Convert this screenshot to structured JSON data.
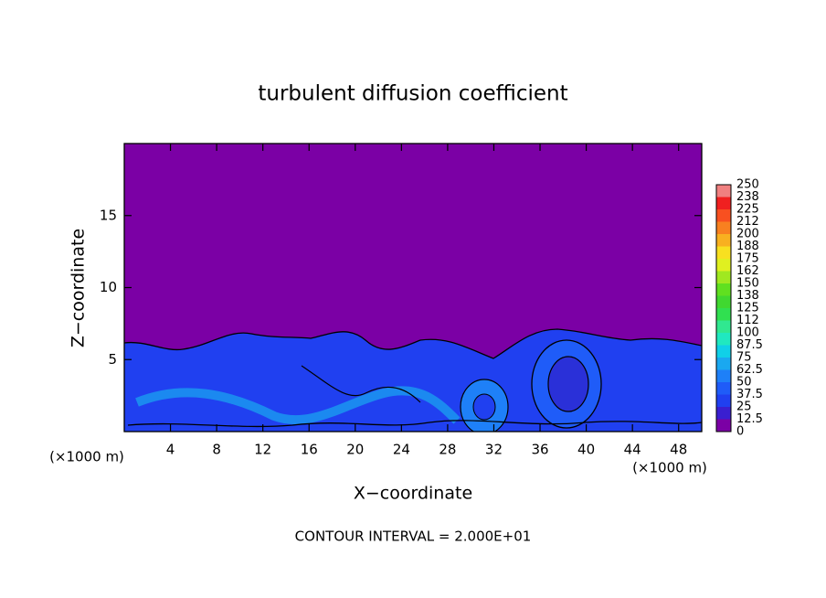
{
  "chart_data": {
    "type": "contour",
    "title": "turbulent diffusion coefficient",
    "xlabel": "X−coordinate",
    "ylabel": "Z−coordinate",
    "xunit": "(×1000 m)",
    "xunit_right": "(×1000 m)",
    "footnote": "CONTOUR INTERVAL = 2.000E+01",
    "xlim": [
      0,
      50
    ],
    "ylim": [
      0,
      20
    ],
    "xticks": [
      4,
      8,
      12,
      16,
      20,
      24,
      28,
      32,
      36,
      40,
      44,
      48
    ],
    "yticks": [
      5,
      10,
      15
    ],
    "colorbar": {
      "levels": [
        0,
        12.5,
        25,
        37.5,
        50,
        62.5,
        75,
        87.5,
        100,
        112,
        125,
        138,
        150,
        162,
        175,
        188,
        200,
        212,
        225,
        238,
        250
      ],
      "colors": [
        "#7b00a5",
        "#3a1fd0",
        "#2040f0",
        "#1f5cf8",
        "#1e80f8",
        "#1aa8f0",
        "#10d0e8",
        "#20e8c0",
        "#30e890",
        "#30e050",
        "#40d830",
        "#60e020",
        "#a0e820",
        "#e0f020",
        "#f8e020",
        "#f8b020",
        "#f88020",
        "#f85020",
        "#f02020",
        "#f08080"
      ]
    }
  }
}
